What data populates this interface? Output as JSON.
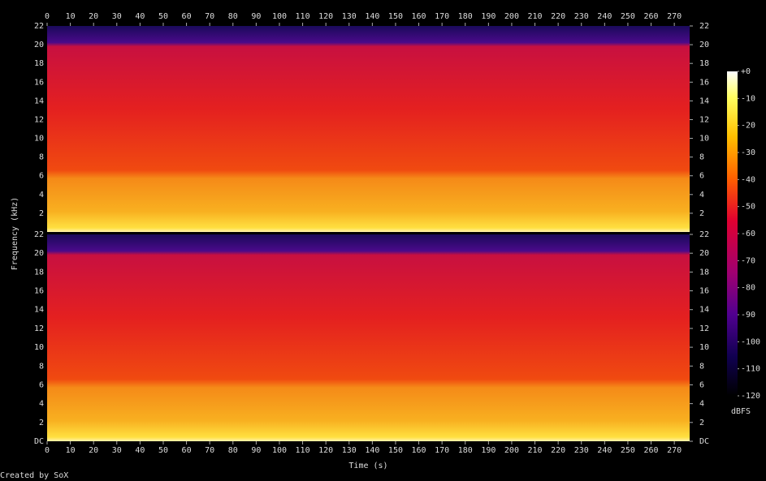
{
  "chart_data": [
    {
      "type": "spectrogram",
      "xlim": [
        0,
        276.6
      ],
      "xticks": [
        0,
        10,
        20,
        30,
        40,
        50,
        60,
        70,
        80,
        90,
        100,
        110,
        120,
        130,
        140,
        150,
        160,
        170,
        180,
        190,
        200,
        210,
        220,
        230,
        240,
        250,
        260,
        270
      ],
      "ylim": [
        0,
        22
      ],
      "yticks": [
        2,
        4,
        6,
        8,
        10,
        12,
        14,
        16,
        18,
        20,
        22
      ]
    },
    {
      "type": "spectrogram",
      "xlabel": "Time (s)",
      "ylabel": "Frequency (kHz)",
      "xlim": [
        0,
        276.6
      ],
      "xticks": [
        0,
        10,
        20,
        30,
        40,
        50,
        60,
        70,
        80,
        90,
        100,
        110,
        120,
        130,
        140,
        150,
        160,
        170,
        180,
        190,
        200,
        210,
        220,
        230,
        240,
        250,
        260,
        270
      ],
      "ylim": [
        0,
        22
      ],
      "yticks": [
        {
          "value": 0,
          "label": "DC"
        },
        2,
        4,
        6,
        8,
        10,
        12,
        14,
        16,
        18,
        20,
        22
      ]
    }
  ],
  "colorbar": {
    "label": "dBFS",
    "lim": [
      -120,
      0
    ],
    "ticks": [
      {
        "value": 0,
        "label": "+0"
      },
      -10,
      -20,
      -30,
      -40,
      -50,
      -60,
      -70,
      -80,
      -90,
      -100,
      -110,
      -120
    ]
  },
  "footer": "Created by SoX"
}
